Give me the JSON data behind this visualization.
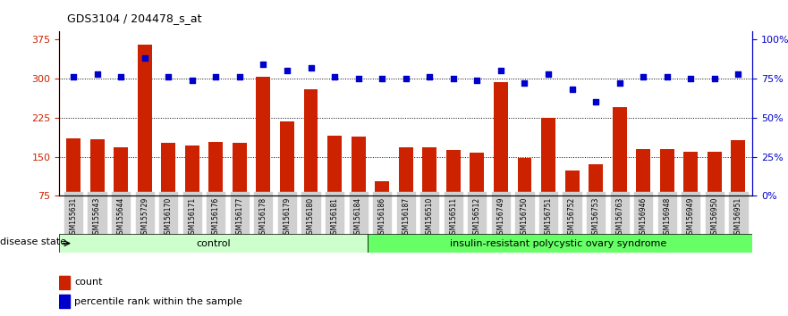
{
  "title": "GDS3104 / 204478_s_at",
  "samples": [
    "GSM155631",
    "GSM155643",
    "GSM155644",
    "GSM155729",
    "GSM156170",
    "GSM156171",
    "GSM156176",
    "GSM156177",
    "GSM156178",
    "GSM156179",
    "GSM156180",
    "GSM156181",
    "GSM156184",
    "GSM156186",
    "GSM156187",
    "GSM156510",
    "GSM156511",
    "GSM156512",
    "GSM156749",
    "GSM156750",
    "GSM156751",
    "GSM156752",
    "GSM156753",
    "GSM156763",
    "GSM156946",
    "GSM156948",
    "GSM156949",
    "GSM156950",
    "GSM156951"
  ],
  "counts": [
    185,
    183,
    168,
    365,
    177,
    171,
    178,
    177,
    303,
    218,
    280,
    190,
    188,
    103,
    169,
    168,
    163,
    158,
    294,
    148,
    225,
    123,
    135,
    245,
    165,
    164,
    160,
    160,
    182
  ],
  "percentile_ranks": [
    76,
    78,
    76,
    88,
    76,
    74,
    76,
    76,
    84,
    80,
    82,
    76,
    75,
    75,
    75,
    76,
    75,
    74,
    80,
    72,
    78,
    68,
    60,
    72,
    76,
    76,
    75,
    75,
    78
  ],
  "control_count": 13,
  "disease_count": 16,
  "bar_color": "#cc2200",
  "dot_color": "#0000cc",
  "control_label": "control",
  "disease_label": "insulin-resistant polycystic ovary syndrome",
  "disease_state_label": "disease state",
  "ylim_left": [
    75,
    390
  ],
  "ylim_right": [
    0,
    105
  ],
  "yticks_left": [
    75,
    150,
    225,
    300,
    375
  ],
  "yticks_right": [
    0,
    25,
    50,
    75,
    100
  ],
  "hlines": [
    150,
    225,
    300
  ],
  "legend_count_label": "count",
  "legend_percentile_label": "percentile rank within the sample",
  "bg_color": "#ffffff",
  "plot_bg_color": "#ffffff",
  "control_bg": "#ccffcc",
  "disease_bg": "#66ff66"
}
